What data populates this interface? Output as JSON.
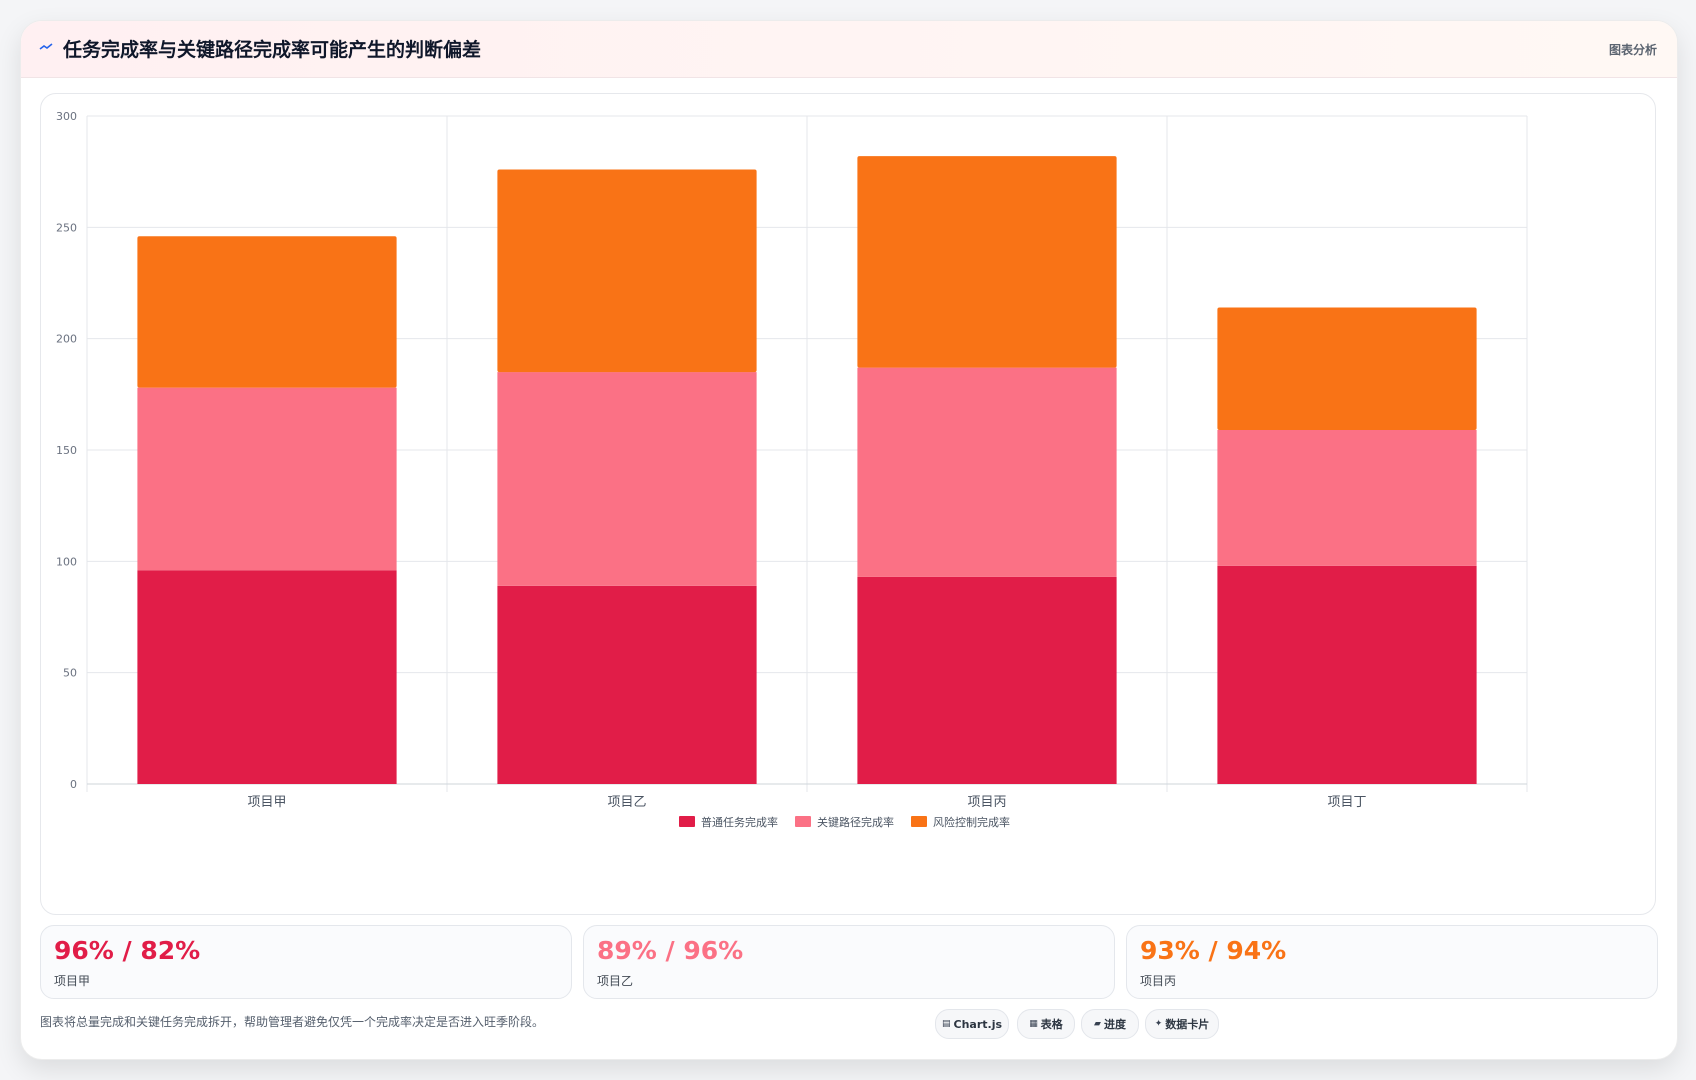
{
  "header": {
    "title": "任务完成率与关键路径完成率可能产生的判断偏差",
    "right_label": "图表分析",
    "icon": "trend-icon"
  },
  "chart_data": {
    "type": "bar",
    "stacked": true,
    "categories": [
      "项目甲",
      "项目乙",
      "项目丙",
      "项目丁"
    ],
    "series": [
      {
        "name": "普通任务完成率",
        "color": "#e11d48",
        "values": [
          96,
          89,
          93,
          98
        ]
      },
      {
        "name": "关键路径完成率",
        "color": "#fb7185",
        "values": [
          82,
          96,
          94,
          61
        ]
      },
      {
        "name": "风险控制完成率",
        "color": "#f97316",
        "values": [
          68,
          91,
          95,
          55
        ]
      }
    ],
    "ylim": [
      0,
      300
    ],
    "yticks": [
      0,
      50,
      100,
      150,
      200,
      250,
      300
    ],
    "grid": true,
    "legend": "bottom",
    "title": "",
    "xlabel": "",
    "ylabel": ""
  },
  "stats": [
    {
      "value": "96% / 82%",
      "label": "项目甲",
      "color": "#e11d48"
    },
    {
      "value": "89% / 96%",
      "label": "项目乙",
      "color": "#fb7185"
    },
    {
      "value": "93% / 94%",
      "label": "项目丙",
      "color": "#f97316"
    }
  ],
  "footnote": "图表将总量完成和关键任务完成拆开，帮助管理者避免仅凭一个完成率决定是否进入旺季阶段。",
  "chips": [
    {
      "label": "Chart.js",
      "icon": "chart-icon"
    },
    {
      "label": "表格",
      "icon": "table-icon"
    },
    {
      "label": "进度",
      "icon": "progress-icon"
    },
    {
      "label": "数据卡片",
      "icon": "sparkle-icon"
    }
  ]
}
